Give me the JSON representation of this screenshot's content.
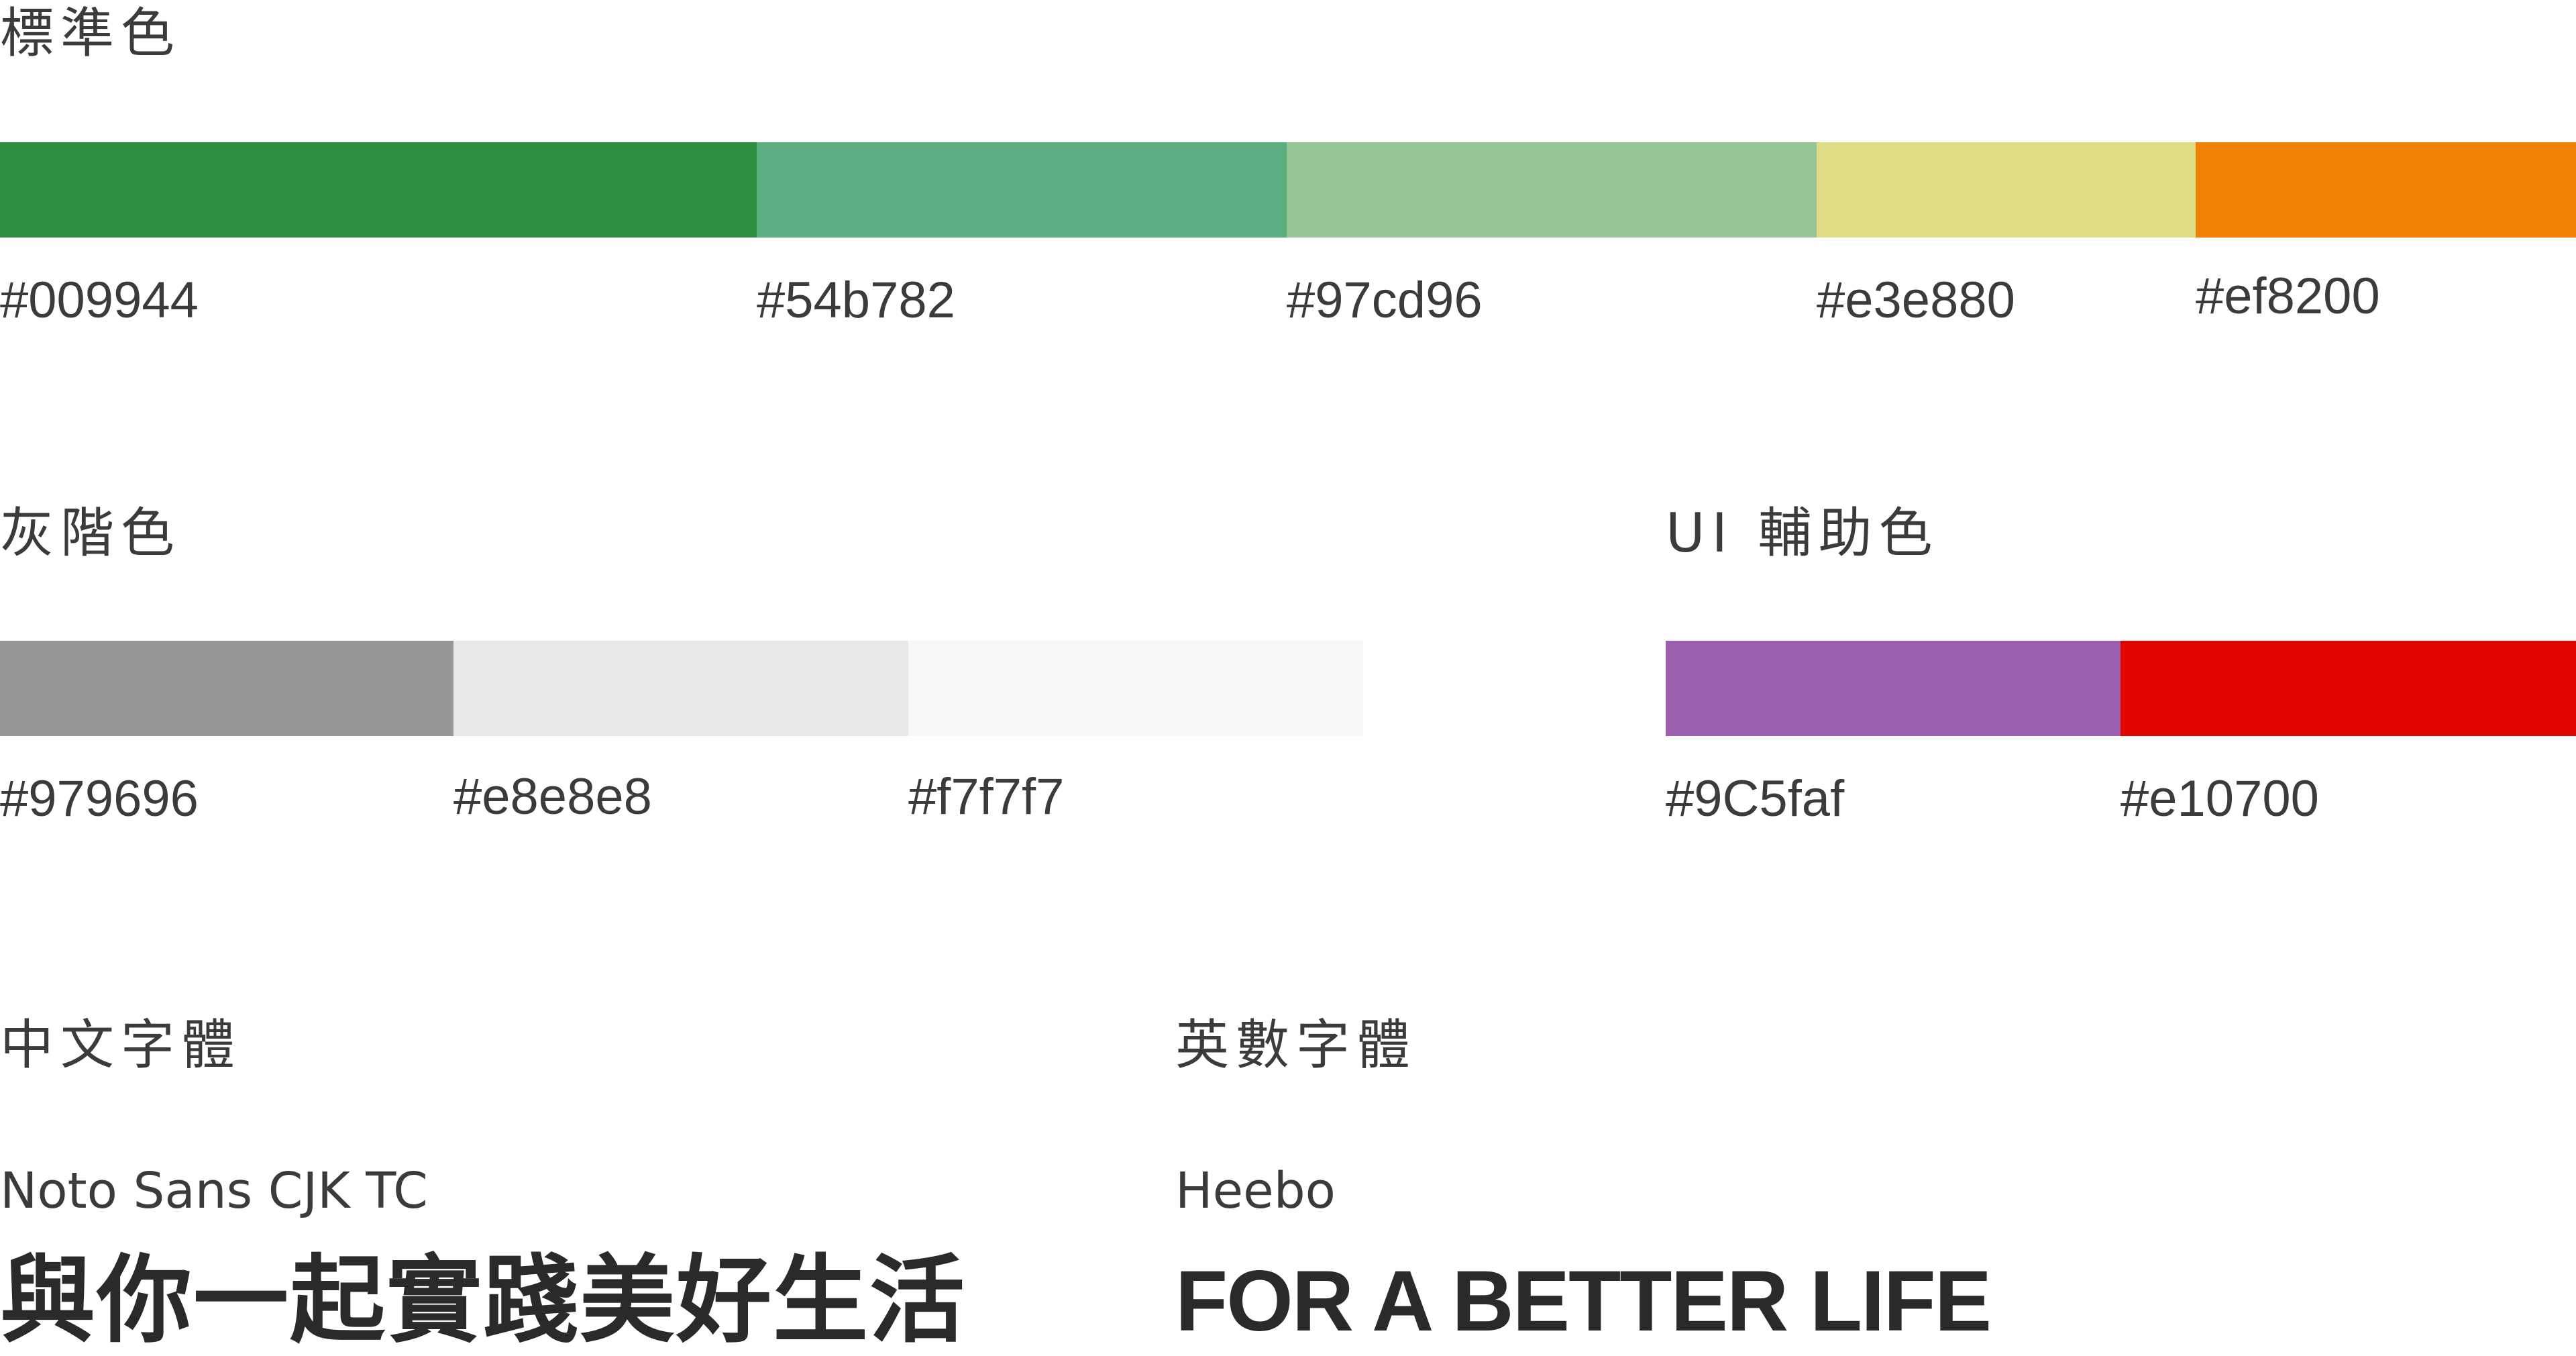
{
  "standard": {
    "title": "標準色",
    "swatches": [
      {
        "hex": "#009944",
        "color": "#2f8f41"
      },
      {
        "hex": "#54b782",
        "color": "#5aae7f"
      },
      {
        "hex": "#97cd96",
        "color": "#97c596"
      },
      {
        "hex": "#e3e880",
        "color": "#dedc85"
      },
      {
        "hex": "#ef8200",
        "color": "#ef8204"
      }
    ]
  },
  "grayscale": {
    "title": "灰階色",
    "swatches": [
      {
        "hex": "#979696",
        "color": "#979696"
      },
      {
        "hex": "#e8e8e8",
        "color": "#e8e8e8"
      },
      {
        "hex": "#f7f7f7",
        "color": "#f7f7f7"
      }
    ]
  },
  "ui": {
    "title": "UI 輔助色",
    "swatches": [
      {
        "hex": "#9C5faf",
        "color": "#9c5faf"
      },
      {
        "hex": "#e10700",
        "color": "#e10700"
      }
    ]
  },
  "chinese_font": {
    "title": "中文字體",
    "name": "Noto Sans CJK TC",
    "sample": "與你一起實踐美好生活"
  },
  "latin_font": {
    "title": "英數字體",
    "name": "Heebo",
    "sample": "FOR A BETTER LIFE"
  }
}
